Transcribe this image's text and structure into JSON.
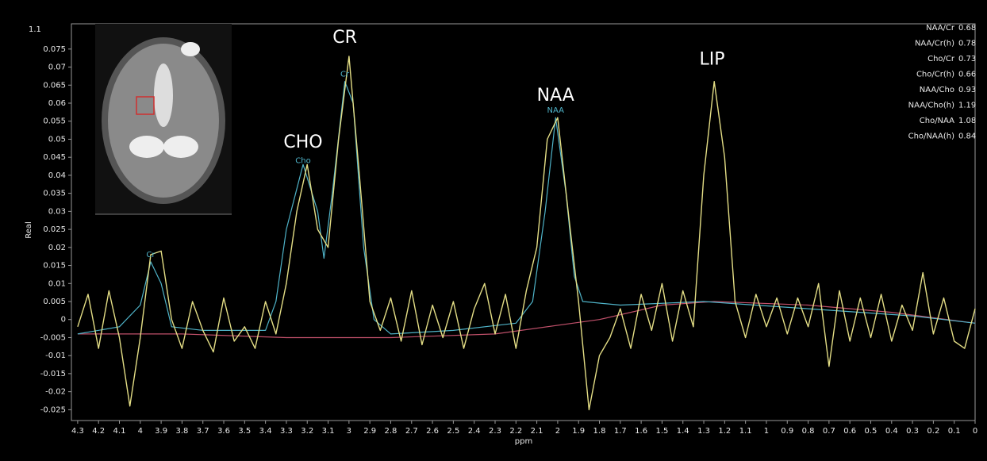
{
  "chart_data": {
    "type": "line",
    "scale_label": "1.1",
    "x_label": "ppm",
    "y_label": "Real",
    "xlim": [
      4.33,
      0
    ],
    "ylim": [
      -0.028,
      0.082
    ],
    "xticks": [
      4.3,
      4.2,
      4.1,
      4,
      3.9,
      3.8,
      3.7,
      3.6,
      3.5,
      3.4,
      3.3,
      3.2,
      3.1,
      3,
      2.9,
      2.8,
      2.7,
      2.6,
      2.5,
      2.4,
      2.3,
      2.2,
      2.1,
      2,
      1.9,
      1.8,
      1.7,
      1.6,
      1.5,
      1.4,
      1.3,
      1.2,
      1.1,
      1,
      0.9,
      0.8,
      0.7,
      0.6,
      0.5,
      0.4,
      0.3,
      0.2,
      0.1,
      0
    ],
    "yticks": [
      -0.025,
      -0.02,
      -0.015,
      -0.01,
      -0.005,
      0,
      0.005,
      0.01,
      0.015,
      0.02,
      0.025,
      0.03,
      0.035,
      0.04,
      0.045,
      0.05,
      0.055,
      0.06,
      0.065,
      0.07,
      0.075
    ],
    "series": [
      {
        "color": "#e3dd85",
        "x": [
          4.3,
          4.25,
          4.2,
          4.15,
          4.1,
          4.05,
          4,
          3.95,
          3.9,
          3.85,
          3.8,
          3.75,
          3.7,
          3.65,
          3.6,
          3.55,
          3.5,
          3.45,
          3.4,
          3.35,
          3.3,
          3.25,
          3.2,
          3.15,
          3.1,
          3.05,
          3,
          2.95,
          2.9,
          2.85,
          2.8,
          2.75,
          2.7,
          2.65,
          2.6,
          2.55,
          2.5,
          2.45,
          2.4,
          2.35,
          2.3,
          2.25,
          2.2,
          2.15,
          2.1,
          2.05,
          2,
          1.95,
          1.9,
          1.85,
          1.8,
          1.75,
          1.7,
          1.65,
          1.6,
          1.55,
          1.5,
          1.45,
          1.4,
          1.35,
          1.3,
          1.25,
          1.2,
          1.15,
          1.1,
          1.05,
          1,
          0.95,
          0.9,
          0.85,
          0.8,
          0.75,
          0.7,
          0.65,
          0.6,
          0.55,
          0.5,
          0.45,
          0.4,
          0.35,
          0.3,
          0.25,
          0.2,
          0.15,
          0.1,
          0.05,
          0
        ],
        "values": [
          -0.002,
          0.007,
          -0.008,
          0.008,
          -0.005,
          -0.024,
          -0.005,
          0.018,
          0.019,
          0,
          -0.008,
          0.005,
          -0.003,
          -0.009,
          0.006,
          -0.006,
          -0.002,
          -0.008,
          0.005,
          -0.004,
          0.01,
          0.03,
          0.043,
          0.025,
          0.02,
          0.05,
          0.073,
          0.04,
          0.005,
          -0.003,
          0.006,
          -0.006,
          0.008,
          -0.007,
          0.004,
          -0.005,
          0.005,
          -0.008,
          0.003,
          0.01,
          -0.004,
          0.007,
          -0.008,
          0.008,
          0.02,
          0.05,
          0.056,
          0.03,
          0.005,
          -0.025,
          -0.01,
          -0.005,
          0.003,
          -0.008,
          0.007,
          -0.003,
          0.01,
          -0.006,
          0.008,
          -0.002,
          0.04,
          0.066,
          0.045,
          0.005,
          -0.005,
          0.007,
          -0.002,
          0.006,
          -0.004,
          0.006,
          -0.002,
          0.01,
          -0.013,
          0.008,
          -0.006,
          0.006,
          -0.005,
          0.007,
          -0.006,
          0.004,
          -0.003,
          0.013,
          -0.004,
          0.006,
          -0.006,
          -0.008,
          0.003
        ]
      },
      {
        "color": "#4fb3c8",
        "x": [
          4.3,
          4.1,
          4,
          3.95,
          3.9,
          3.85,
          3.7,
          3.4,
          3.35,
          3.3,
          3.22,
          3.15,
          3.12,
          3.08,
          3.02,
          2.98,
          2.93,
          2.88,
          2.8,
          2.5,
          2.2,
          2.12,
          2.06,
          2.01,
          1.96,
          1.92,
          1.88,
          1.7,
          1.3,
          0.8,
          0.3,
          0
        ],
        "values": [
          -0.004,
          -0.002,
          0.004,
          0.016,
          0.01,
          -0.002,
          -0.003,
          -0.003,
          0.005,
          0.025,
          0.043,
          0.03,
          0.017,
          0.035,
          0.066,
          0.06,
          0.02,
          0,
          -0.004,
          -0.003,
          -0.001,
          0.005,
          0.03,
          0.056,
          0.035,
          0.012,
          0.005,
          0.004,
          0.005,
          0.003,
          0.001,
          -0.001
        ]
      },
      {
        "color": "#c0506a",
        "x": [
          4.3,
          3.8,
          3.3,
          2.8,
          2.3,
          1.8,
          1.5,
          1.25,
          0.8,
          0.4,
          0
        ],
        "values": [
          -0.004,
          -0.004,
          -0.005,
          -0.005,
          -0.004,
          0,
          0.004,
          0.005,
          0.004,
          0.002,
          -0.001
        ]
      }
    ],
    "annotations": [
      {
        "text": "CHO",
        "x": 3.22,
        "y": 0.049
      },
      {
        "text": "CR",
        "x": 3.02,
        "y": 0.078
      },
      {
        "text": "NAA",
        "x": 2.01,
        "y": 0.062
      },
      {
        "text": "LIP",
        "x": 1.26,
        "y": 0.072
      }
    ],
    "fit_labels": [
      {
        "text": "Cr",
        "x": 3.95,
        "y": 0.018
      },
      {
        "text": "Cho",
        "x": 3.22,
        "y": 0.044
      },
      {
        "text": "Cr",
        "x": 3.02,
        "y": 0.068
      },
      {
        "text": "NAA",
        "x": 2.01,
        "y": 0.058
      }
    ],
    "ratios": [
      {
        "name": "NAA/Cr",
        "value": 0.68
      },
      {
        "name": "NAA/Cr(h)",
        "value": 0.78
      },
      {
        "name": "Cho/Cr",
        "value": 0.73
      },
      {
        "name": "Cho/Cr(h)",
        "value": 0.66
      },
      {
        "name": "NAA/Cho",
        "value": 0.93
      },
      {
        "name": "NAA/Cho(h)",
        "value": 1.19
      },
      {
        "name": "Cho/NAA",
        "value": 1.08
      },
      {
        "name": "Cho/NAA(h)",
        "value": 0.84
      }
    ]
  }
}
